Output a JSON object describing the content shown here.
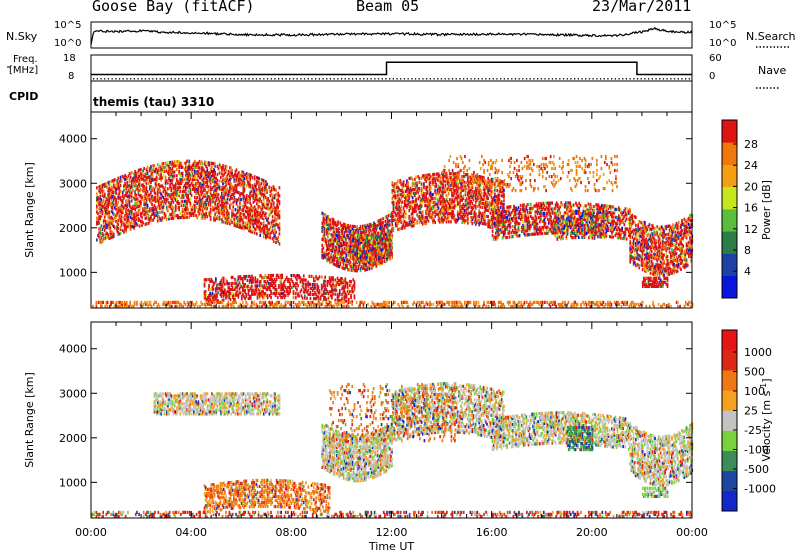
{
  "header": {
    "station": "Goose Bay (fitACF)",
    "beam": "Beam 05",
    "date": "23/Mar/2011"
  },
  "strip_labels": {
    "nsky": "N.Sky",
    "nsearch": "N.Search",
    "freq_line1": "Freq.",
    "freq_line2": "[MHz]",
    "nave": "Nave",
    "cpid": "CPID",
    "cpid_value": "themis (tau) 3310",
    "nsky_ticks": [
      "10^5",
      "10^0"
    ],
    "nsearch_ticks": [
      "10^5",
      "10^0"
    ],
    "freq_ticks": [
      "18",
      "8"
    ],
    "nave_ticks": [
      "60",
      "0"
    ]
  },
  "chart_data": [
    {
      "type": "line",
      "name": "noise-strip",
      "x_hours": [
        0,
        0.1,
        0.2,
        1,
        2,
        3,
        4,
        6,
        8,
        10,
        12,
        14,
        16,
        18,
        20,
        21,
        22,
        22.5,
        23,
        24
      ],
      "nsky_log": [
        0.3,
        3.2,
        3.4,
        3.3,
        3.4,
        3.1,
        3.0,
        2.6,
        2.5,
        2.7,
        2.8,
        2.6,
        2.7,
        2.6,
        2.4,
        2.4,
        3.2,
        4.0,
        3.3,
        3.1
      ]
    },
    {
      "type": "line",
      "name": "freq-nave-strip",
      "freq_steps": [
        [
          0,
          10.5
        ],
        [
          11.8,
          10.5
        ],
        [
          11.8,
          15.2
        ],
        [
          21.8,
          15.2
        ],
        [
          21.8,
          10.5
        ],
        [
          24,
          10.5
        ]
      ],
      "nave_value": 5,
      "freq_ylim": [
        8,
        18
      ],
      "nave_ylim": [
        0,
        60
      ]
    },
    {
      "type": "heatmap",
      "title": "",
      "ylabel": "Slant Range [km]",
      "ylim": [
        200,
        4600
      ],
      "xlim": [
        0,
        24
      ],
      "y_ticks": [
        "4000",
        "3000",
        "2000",
        "1000"
      ],
      "colorbar_label": "Power [dB]",
      "colorbar_ticks": [
        "28",
        "24",
        "20",
        "16",
        "12",
        "8",
        "4"
      ],
      "colorbar_colors": [
        "#0a14dc",
        "#1e41a5",
        "#2d7d46",
        "#5abe3c",
        "#c8e61e",
        "#f5a014",
        "#f0780a",
        "#dc1414"
      ],
      "regions": [
        {
          "x": [
            0.2,
            7.5
          ],
          "y": [
            1600,
            2900
          ],
          "arc": 1200,
          "v": 7,
          "density": 0.45,
          "w": 0.75
        },
        {
          "x": [
            9.2,
            12.0
          ],
          "y": [
            1300,
            2300
          ],
          "arc": -600,
          "v": 15,
          "density": 0.55,
          "w": 0.55
        },
        {
          "x": [
            10.3,
            12.0
          ],
          "y": [
            1300,
            1900
          ],
          "arc": -300,
          "v": 19,
          "density": 0.7,
          "w": 0.35
        },
        {
          "x": [
            12.0,
            16.5
          ],
          "y": [
            1900,
            3000
          ],
          "arc": 400,
          "v": 7,
          "density": 0.45,
          "w": 0.75
        },
        {
          "x": [
            16.0,
            21.5
          ],
          "y": [
            1700,
            2400
          ],
          "arc": 300,
          "v": 8,
          "density": 0.45,
          "w": 0.55
        },
        {
          "x": [
            18.5,
            20.5
          ],
          "y": [
            1700,
            2300
          ],
          "arc": 100,
          "v": 14,
          "density": 0.35,
          "w": 0.3
        },
        {
          "x": [
            21.5,
            24.0
          ],
          "y": [
            1200,
            2300
          ],
          "arc": -600,
          "v": 7,
          "density": 0.5,
          "w": 0.6
        },
        {
          "x": [
            22.0,
            23.0
          ],
          "y": [
            650,
            850
          ],
          "arc": 0,
          "v": 14,
          "density": 0.6,
          "w": 0.9
        },
        {
          "x": [
            4.5,
            10.5
          ],
          "y": [
            300,
            800
          ],
          "arc": 200,
          "v": 8,
          "density": 0.4,
          "w": 0.8
        },
        {
          "x": [
            0.0,
            24.0
          ],
          "y": [
            200,
            320
          ],
          "arc": 0,
          "v": 6,
          "density": 0.35,
          "w": 1.0
        },
        {
          "x": [
            14.0,
            21.0
          ],
          "y": [
            2800,
            3600
          ],
          "arc": 0,
          "v": 6,
          "density": 0.12,
          "w": 1.0
        }
      ]
    },
    {
      "type": "heatmap",
      "title": "",
      "ylabel": "Slant Range [km]",
      "xlabel": "Time UT",
      "ylim": [
        200,
        4600
      ],
      "xlim": [
        0,
        24
      ],
      "y_ticks": [
        "4000",
        "3000",
        "2000",
        "1000"
      ],
      "x_ticks": [
        "00:00",
        "04:00",
        "08:00",
        "12:00",
        "16:00",
        "20:00",
        "00:00"
      ],
      "colorbar_label": "Velocity [m s^-1]",
      "colorbar_ticks": [
        "1000",
        "500",
        "100",
        "25",
        "-25",
        "-100",
        "-500",
        "-1000"
      ],
      "colorbar_colors": [
        "#1428c8",
        "#1e46a0",
        "#3c8c5a",
        "#78d23c",
        "#c3c3c3",
        "#f5a01e",
        "#f07814",
        "#dc2814",
        "#e61414"
      ],
      "regions": [
        {
          "x": [
            2.5,
            7.5
          ],
          "y": [
            2500,
            2950
          ],
          "arc": 0,
          "v": 4,
          "density": 0.5,
          "w": 0.7
        },
        {
          "x": [
            9.2,
            12.0
          ],
          "y": [
            1300,
            2300
          ],
          "arc": -600,
          "v": 4,
          "density": 0.55,
          "w": 0.75
        },
        {
          "x": [
            12.0,
            16.5
          ],
          "y": [
            1900,
            3000
          ],
          "arc": 400,
          "v": 4,
          "density": 0.4,
          "w": 0.6
        },
        {
          "x": [
            16.0,
            21.5
          ],
          "y": [
            1700,
            2400
          ],
          "arc": 300,
          "v": 4,
          "density": 0.45,
          "w": 0.7
        },
        {
          "x": [
            21.5,
            24.0
          ],
          "y": [
            1200,
            2300
          ],
          "arc": -600,
          "v": 4,
          "density": 0.45,
          "w": 0.7
        },
        {
          "x": [
            19.0,
            20.0
          ],
          "y": [
            1700,
            2200
          ],
          "arc": 0,
          "v": 2,
          "density": 0.5,
          "w": 0.8
        },
        {
          "x": [
            4.5,
            9.5
          ],
          "y": [
            300,
            900
          ],
          "arc": 250,
          "v": 6,
          "density": 0.4,
          "w": 0.8
        },
        {
          "x": [
            9.5,
            14.5
          ],
          "y": [
            1900,
            3200
          ],
          "arc": 0,
          "v": 6,
          "density": 0.12,
          "w": 0.8
        },
        {
          "x": [
            22.0,
            23.0
          ],
          "y": [
            650,
            850
          ],
          "arc": 0,
          "v": 3,
          "density": 0.5,
          "w": 0.8
        },
        {
          "x": [
            0.0,
            24.0
          ],
          "y": [
            200,
            320
          ],
          "arc": 0,
          "v": 7,
          "density": 0.3,
          "w": 0.5
        }
      ]
    }
  ]
}
